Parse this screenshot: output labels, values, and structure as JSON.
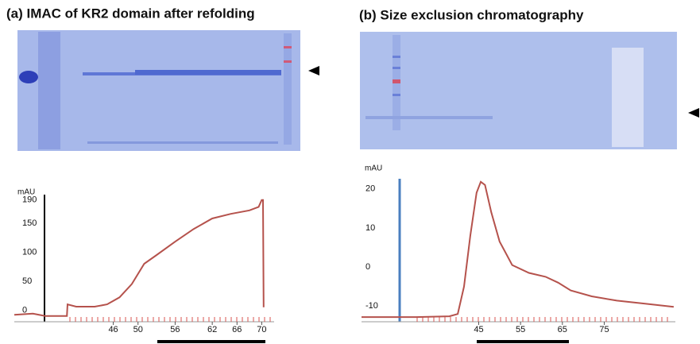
{
  "chart_data": [
    {
      "type": "line",
      "title": "(a) IMAC of KR2 domain after refolding",
      "y_label": "mAU",
      "x": [
        30,
        33,
        35,
        38.5,
        38.6,
        40,
        43,
        45,
        47,
        49,
        51,
        53,
        56,
        59,
        62,
        65,
        68,
        69.5,
        70,
        70.2,
        70.3
      ],
      "series": [
        {
          "color": "#b5524c",
          "values": [
            -8,
            -6,
            -10,
            -10,
            10,
            6,
            6,
            10,
            22,
            45,
            80,
            95,
            118,
            140,
            158,
            166,
            172,
            178,
            190,
            190,
            5
          ]
        }
      ],
      "xlim": [
        30,
        72
      ],
      "xticks": [
        46,
        50,
        56,
        62,
        66,
        70
      ],
      "ylim": [
        -20,
        195
      ],
      "yticks": [
        0,
        50,
        100,
        150,
        190
      ]
    },
    {
      "type": "line",
      "title": "(b) Size exclusion chromatography",
      "y_label": "mAU",
      "x": [
        17,
        30,
        38,
        40,
        41.5,
        43,
        44.5,
        45.5,
        46.5,
        48,
        50,
        53,
        57,
        61,
        64,
        67,
        72,
        78,
        85,
        91.6
      ],
      "series": [
        {
          "color": "#b5524c",
          "values": [
            -12.8,
            -12.8,
            -12.6,
            -12,
            -5,
            8,
            19,
            21.8,
            21,
            14,
            6.5,
            0.5,
            -1.5,
            -2.5,
            -4,
            -6,
            -7.5,
            -8.6,
            -9.4,
            -10.2
          ]
        }
      ],
      "xlim": [
        17,
        92
      ],
      "xticks": [
        45,
        55,
        65,
        75
      ],
      "ylim": [
        -14,
        24
      ],
      "yticks": [
        -10,
        0,
        10,
        20
      ]
    }
  ]
}
